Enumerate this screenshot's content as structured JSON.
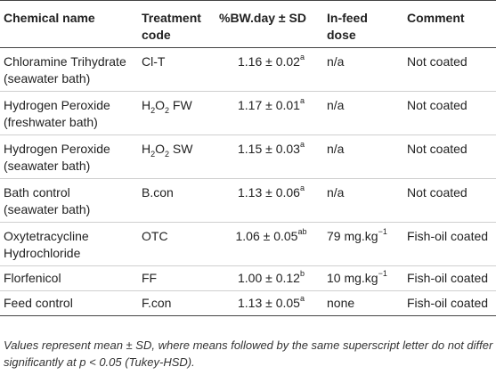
{
  "headers": {
    "chemical": "Chemical name",
    "treatment_line1": "Treatment",
    "treatment_line2": "code",
    "bw": "%BW.day ± SD",
    "infeed_line1": "In-feed",
    "infeed_line2": "dose",
    "comment": "Comment"
  },
  "rows": [
    {
      "name_line1": "Chloramine Trihydrate",
      "name_line2": "(seawater bath)",
      "code_main": "Cl-T",
      "code_sub": "",
      "code_tail": "",
      "bw": "1.16 ± 0.02",
      "bw_sup": "a",
      "dose": "n/a",
      "dose_sup": "",
      "comment": "Not coated"
    },
    {
      "name_line1": "Hydrogen Peroxide",
      "name_line2": "(freshwater bath)",
      "code_main": "H",
      "code_sub": "2",
      "code_mid": "O",
      "code_sub2": "2",
      "code_tail": " FW",
      "bw": "1.17 ± 0.01",
      "bw_sup": "a",
      "dose": "n/a",
      "dose_sup": "",
      "comment": "Not coated"
    },
    {
      "name_line1": "Hydrogen Peroxide",
      "name_line2": "(seawater bath)",
      "code_main": "H",
      "code_sub": "2",
      "code_mid": "O",
      "code_sub2": "2",
      "code_tail": " SW",
      "bw": "1.15 ± 0.03",
      "bw_sup": "a",
      "dose": "n/a",
      "dose_sup": "",
      "comment": "Not coated"
    },
    {
      "name_line1": "Bath control",
      "name_line2": "(seawater bath)",
      "code_main": "B.con",
      "code_sub": "",
      "code_tail": "",
      "bw": "1.13 ± 0.06",
      "bw_sup": "a",
      "dose": "n/a",
      "dose_sup": "",
      "comment": "Not coated"
    },
    {
      "name_line1": "Oxytetracycline",
      "name_line2": "Hydrochloride",
      "code_main": "OTC",
      "code_sub": "",
      "code_tail": "",
      "bw": "1.06 ± 0.05",
      "bw_sup": "ab",
      "dose": "79 mg.kg",
      "dose_sup": "−1",
      "comment": "Fish-oil coated"
    },
    {
      "name_line1": "Florfenicol",
      "name_line2": "",
      "code_main": "FF",
      "code_sub": "",
      "code_tail": "",
      "bw": "1.00 ± 0.12",
      "bw_sup": "b",
      "dose": "10 mg.kg",
      "dose_sup": "−1",
      "comment": "Fish-oil coated"
    },
    {
      "name_line1": "Feed control",
      "name_line2": "",
      "code_main": "F.con",
      "code_sub": "",
      "code_tail": "",
      "bw": "1.13 ± 0.05",
      "bw_sup": "a",
      "dose": "none",
      "dose_sup": "",
      "comment": "Fish-oil coated"
    }
  ],
  "footnote": {
    "part1": "Values represent mean ± SD, where means followed by the same superscript letter do not differ significantly at ",
    "p": "p",
    "part2": " < 0.05 (Tukey-HSD)."
  }
}
